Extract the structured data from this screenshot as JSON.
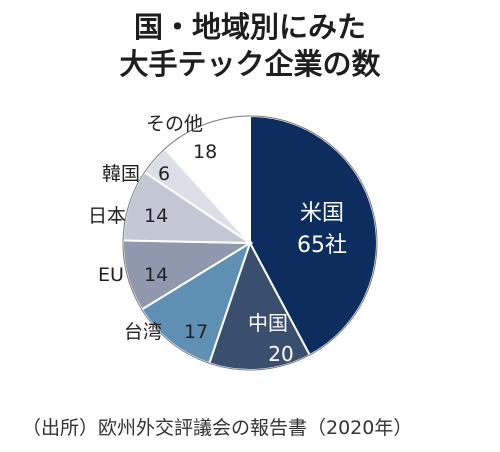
{
  "title_lines": [
    "国・地域別にみた",
    "大手テック企業の数"
  ],
  "source": "（出所）欧州外交評議会の報告書（2020年）",
  "chart_data": {
    "type": "pie",
    "title": "国・地域別にみた大手テック企業の数",
    "unit": "社",
    "start": "12 o'clock, clockwise",
    "slices": [
      {
        "label": "米国",
        "value": 65,
        "value_text": "65社",
        "color": "#0d2d5e",
        "text_color": "#ffffff"
      },
      {
        "label": "中国",
        "value": 20,
        "value_text": "20",
        "color": "#3a4e6e",
        "text_color": "#ffffff"
      },
      {
        "label": "台湾",
        "value": 17,
        "value_text": "17",
        "color": "#5f8fb3",
        "text_color": "#222222"
      },
      {
        "label": "EU",
        "value": 14,
        "value_text": "14",
        "color": "#8f98ad",
        "text_color": "#222222"
      },
      {
        "label": "日本",
        "value": 14,
        "value_text": "14",
        "color": "#c4c8d6",
        "text_color": "#222222"
      },
      {
        "label": "韓国",
        "value": 6,
        "value_text": "6",
        "color": "#dcdee8",
        "text_color": "#222222"
      },
      {
        "label": "その他",
        "value": 18,
        "value_text": "18",
        "color": "#ffffff",
        "text_color": "#222222"
      }
    ]
  }
}
